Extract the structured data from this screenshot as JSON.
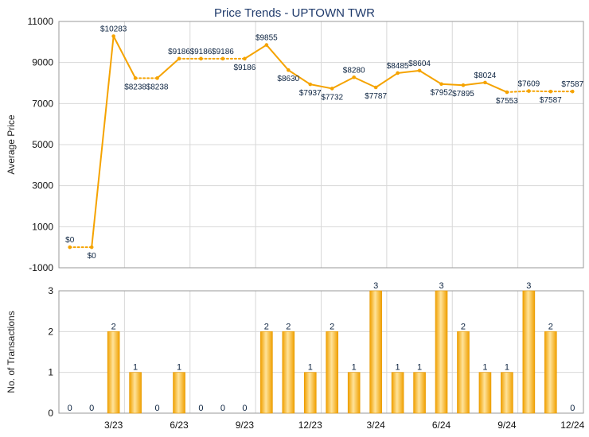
{
  "chart_data": [
    {
      "type": "line",
      "title": "Price Trends - UPTOWN TWR",
      "ylabel": "Average Price",
      "ylim": [
        -1000,
        11000
      ],
      "yticks": [
        "-1000",
        "1000",
        "3000",
        "5000",
        "7000",
        "9000",
        "11000"
      ],
      "grid": true,
      "color": "#f5a300",
      "values": [
        0,
        0,
        10283,
        8238,
        8238,
        9186,
        9186,
        9186,
        9186,
        9855,
        8630,
        7937,
        7732,
        8280,
        7787,
        8485,
        8604,
        7952,
        7895,
        8024,
        7553,
        7609,
        7587,
        7587
      ],
      "labels": [
        "$0",
        "$0",
        "$10283",
        "$8238",
        "$8238",
        "$9186",
        "$9186",
        "$9186",
        "$9186",
        "$9855",
        "$8630",
        "$7937",
        "$7732",
        "$8280",
        "$7787",
        "$8485",
        "$8604",
        "$7952",
        "$7895",
        "$8024",
        "$7553",
        "$7609",
        "$7587",
        "$7587"
      ],
      "dotted_segments": [
        [
          0,
          1
        ],
        [
          3,
          4
        ],
        [
          5,
          6
        ],
        [
          6,
          7
        ],
        [
          7,
          8
        ],
        [
          20,
          21
        ],
        [
          21,
          22
        ],
        [
          22,
          23
        ]
      ]
    },
    {
      "type": "bar",
      "ylabel": "No. of Transactions",
      "ylim": [
        0,
        3
      ],
      "yticks": [
        "0",
        "1",
        "2",
        "3"
      ],
      "grid": true,
      "color": "#f5a300",
      "values": [
        0,
        0,
        2,
        1,
        0,
        1,
        0,
        0,
        0,
        2,
        2,
        1,
        2,
        1,
        3,
        1,
        1,
        3,
        2,
        1,
        1,
        3,
        2,
        0
      ],
      "xticks": [
        {
          "index": 2,
          "label": "3/23"
        },
        {
          "index": 5,
          "label": "6/23"
        },
        {
          "index": 8,
          "label": "9/23"
        },
        {
          "index": 11,
          "label": "12/23"
        },
        {
          "index": 14,
          "label": "3/24"
        },
        {
          "index": 17,
          "label": "6/24"
        },
        {
          "index": 20,
          "label": "9/24"
        },
        {
          "index": 23,
          "label": "12/24"
        }
      ]
    }
  ]
}
